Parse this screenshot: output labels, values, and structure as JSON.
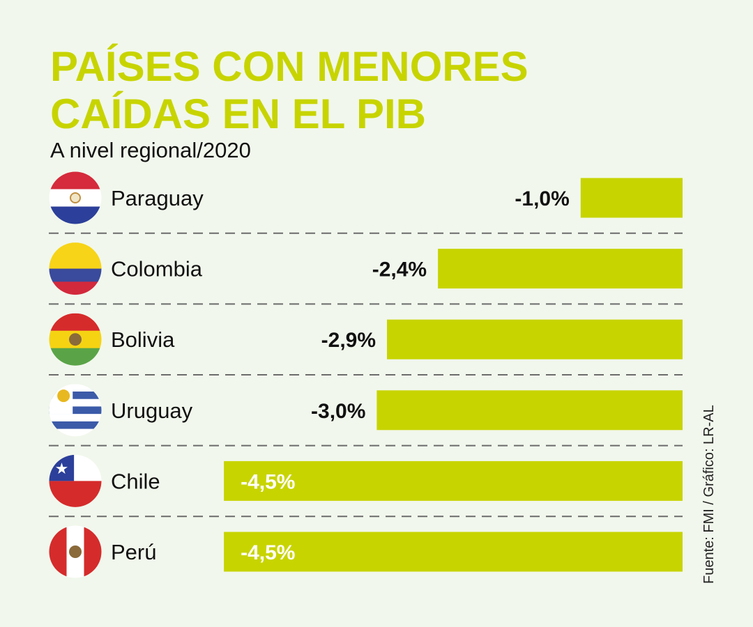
{
  "chart_data": {
    "type": "bar",
    "orientation": "horizontal",
    "title_lines": [
      "PAÍSES CON MENORES",
      "CAÍDAS EN EL PIB"
    ],
    "subtitle": "A nivel regional/2020",
    "categories": [
      "Paraguay",
      "Colombia",
      "Bolivia",
      "Uruguay",
      "Chile",
      "Perú"
    ],
    "values": [
      -1.0,
      -2.4,
      -2.9,
      -3.0,
      -4.5,
      -4.5
    ],
    "labels": [
      "-1,0%",
      "-2,4%",
      "-2,9%",
      "-3,0%",
      "-4,5%",
      "-4,5%"
    ],
    "flags": [
      "paraguay-flag",
      "colombia-flag",
      "bolivia-flag",
      "uruguay-flag",
      "chile-flag",
      "peru-flag"
    ],
    "source": "Fuente: FMI / Gráfico: LR-AL",
    "grid": false,
    "colors": {
      "bar": "#c8d400",
      "title": "#c8d400",
      "background": "#f1f7ec",
      "divider": "#6b6b6b"
    }
  }
}
